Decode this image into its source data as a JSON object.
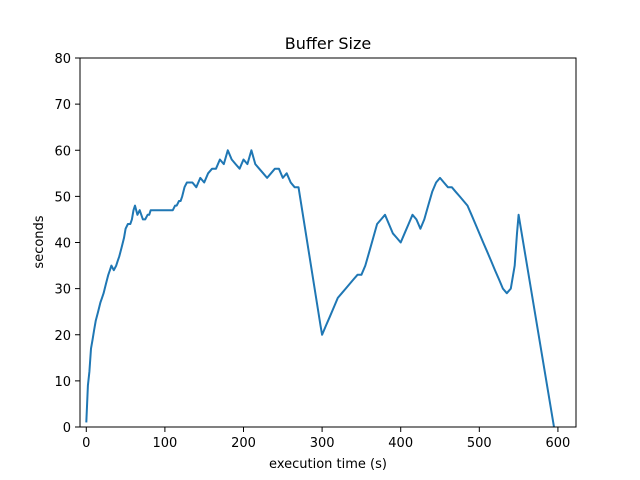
{
  "chart_data": {
    "type": "line",
    "title": "Buffer Size",
    "xlabel": "execution time (s)",
    "ylabel": "seconds",
    "xlim": [
      -8,
      623
    ],
    "ylim": [
      0,
      80
    ],
    "x_ticks": [
      "0",
      "100",
      "200",
      "300",
      "400",
      "500",
      "600"
    ],
    "y_ticks": [
      "0",
      "10",
      "20",
      "30",
      "40",
      "50",
      "60",
      "70",
      "80"
    ],
    "grid": false,
    "legend": false,
    "color": "#1f77b4",
    "series": [
      {
        "x": [
          0,
          2,
          4,
          6,
          8,
          10,
          12,
          15,
          18,
          20,
          22,
          25,
          28,
          30,
          32,
          35,
          38,
          40,
          42,
          45,
          48,
          50,
          53,
          56,
          58,
          60,
          62,
          65,
          68,
          70,
          72,
          75,
          78,
          80,
          82,
          85,
          90,
          95,
          100,
          105,
          110,
          113,
          115,
          118,
          120,
          122,
          125,
          128,
          130,
          135,
          140,
          145,
          150,
          155,
          160,
          165,
          170,
          175,
          180,
          185,
          190,
          195,
          200,
          205,
          210,
          215,
          220,
          225,
          230,
          235,
          240,
          245,
          250,
          255,
          260,
          265,
          270,
          298,
          300,
          305,
          310,
          315,
          320,
          325,
          330,
          335,
          340,
          345,
          350,
          355,
          360,
          365,
          370,
          375,
          380,
          385,
          390,
          395,
          400,
          405,
          410,
          415,
          420,
          425,
          430,
          435,
          440,
          445,
          450,
          455,
          460,
          465,
          470,
          475,
          480,
          485,
          490,
          495,
          500,
          505,
          510,
          515,
          520,
          525,
          530,
          535,
          540,
          545,
          548,
          550,
          595
        ],
        "y": [
          1,
          9,
          12,
          17,
          19,
          21,
          23,
          25,
          27,
          28,
          29,
          31,
          33,
          34,
          35,
          34,
          35,
          36,
          37,
          39,
          41,
          43,
          44,
          44,
          45,
          47,
          48,
          46,
          47,
          46,
          45,
          45,
          46,
          46,
          47,
          47,
          47,
          47,
          47,
          47,
          47,
          48,
          48,
          49,
          49,
          50,
          52,
          53,
          53,
          53,
          52,
          54,
          53,
          55,
          56,
          56,
          58,
          57,
          60,
          58,
          57,
          56,
          58,
          57,
          60,
          57,
          56,
          55,
          54,
          55,
          56,
          56,
          54,
          55,
          53,
          52,
          52,
          22,
          20,
          22,
          24,
          26,
          28,
          29,
          30,
          31,
          32,
          33,
          33,
          35,
          38,
          41,
          44,
          45,
          46,
          44,
          42,
          41,
          40,
          42,
          44,
          46,
          45,
          43,
          45,
          48,
          51,
          53,
          54,
          53,
          52,
          52,
          51,
          50,
          49,
          48,
          46,
          44,
          42,
          40,
          38,
          36,
          34,
          32,
          30,
          29,
          30,
          35,
          42,
          46,
          0
        ]
      }
    ]
  }
}
